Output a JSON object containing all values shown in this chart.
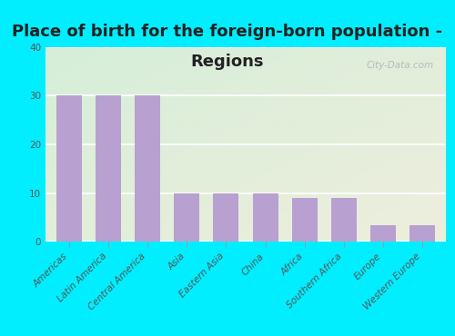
{
  "title_line1": "Place of birth for the foreign-born population -",
  "title_line2": "Regions",
  "categories": [
    "Americas",
    "Latin America",
    "Central America",
    "Asia",
    "Eastern Asia",
    "China",
    "Africa",
    "Southern Africa",
    "Europe",
    "Western Europe"
  ],
  "values": [
    30,
    30,
    30,
    10,
    10,
    10,
    9,
    9,
    3.5,
    3.5
  ],
  "bar_color": "#b8a0d0",
  "background_outer": "#00eeff",
  "background_inner_left": "#d8eedc",
  "background_inner_right": "#eef0d8",
  "ylim": [
    0,
    40
  ],
  "yticks": [
    0,
    10,
    20,
    30,
    40
  ],
  "title_fontsize": 13,
  "tick_fontsize": 7.5,
  "title_color": "#222222",
  "watermark": "City-Data.com",
  "plot_bg_top_left": "#d5eed8",
  "plot_bg_bottom_right": "#eeeedd"
}
